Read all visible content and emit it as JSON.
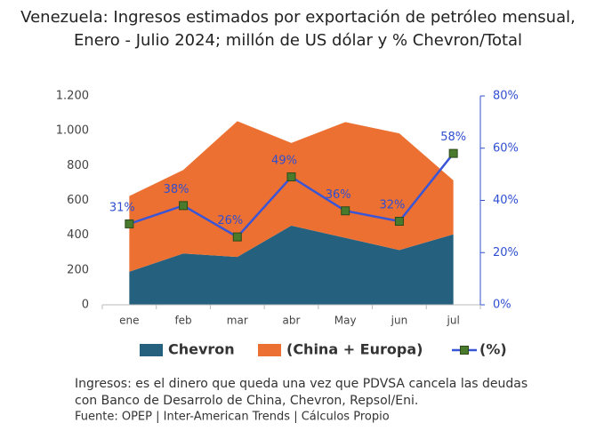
{
  "chart_data": {
    "type": "area_line",
    "title": "Venezuela: Ingresos estimados por exportación de petróleo mensual,",
    "subtitle": "Enero - Julio 2024; millón de US dólar y % Chevron/Total",
    "categories": [
      "ene",
      "feb",
      "mar",
      "abr",
      "May",
      "jun",
      "jul"
    ],
    "series": [
      {
        "name": "Chevron",
        "color": "#25607f",
        "values": [
          190,
          295,
          275,
          455,
          385,
          315,
          405
        ]
      },
      {
        "name": "(China + Europa)",
        "color": "#ec7031",
        "values": [
          435,
          480,
          780,
          475,
          665,
          670,
          310
        ]
      },
      {
        "name": "(%)",
        "color": "#3a55d6",
        "marker_color": "#4a7a2c",
        "axis": "y2",
        "values": [
          31,
          38,
          26,
          49,
          36,
          32,
          58
        ],
        "value_labels": [
          "31%",
          "38%",
          "26%",
          "49%",
          "36%",
          "32%",
          "58%"
        ]
      }
    ],
    "ylim": [
      0,
      1200
    ],
    "yticks": [
      0,
      200,
      400,
      600,
      800,
      {
        "value": 1000,
        "label": "1.000"
      },
      {
        "value": 1200,
        "label": "1.200"
      }
    ],
    "y2lim": [
      0,
      80
    ],
    "y2ticks": [
      {
        "value": 0,
        "label": "0%"
      },
      {
        "value": 20,
        "label": "20%"
      },
      {
        "value": 40,
        "label": "40%"
      },
      {
        "value": 60,
        "label": "60%"
      },
      {
        "value": 80,
        "label": "80%"
      }
    ],
    "legend": "bottom",
    "notes": [
      "Ingresos: es el dinero que queda una vez que PDVSA cancela las deudas",
      "con Banco de Desarrolo de China, Chevron, Repsol/Eni.",
      "Fuente: OPEP | Inter-American Trends | Cálculos Propio"
    ]
  }
}
